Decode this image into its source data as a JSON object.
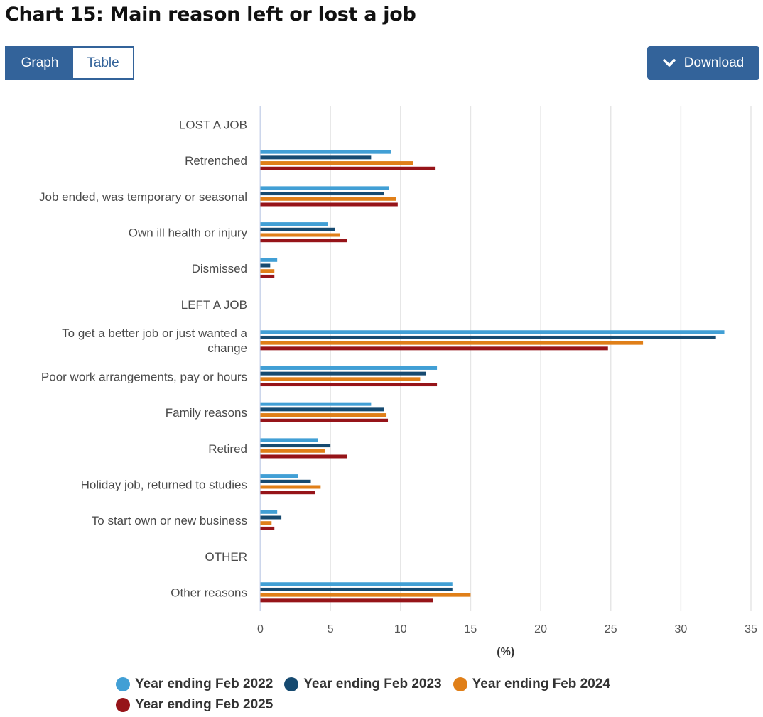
{
  "page": {
    "title": "Chart 15: Main reason left or lost a job",
    "view_toggle": {
      "graph_label": "Graph",
      "table_label": "Table",
      "active": "Graph"
    },
    "download_label": "Download",
    "download_icon": "chevron-down-icon"
  },
  "colors": {
    "accent": "#33639a",
    "series": [
      "#419fd5",
      "#164a70",
      "#e07f18",
      "#961419"
    ]
  },
  "chart_data": {
    "type": "bar",
    "orientation": "horizontal",
    "title": "Chart 15: Main reason left or lost a job",
    "xlabel": "(%)",
    "ylabel": "",
    "xlim": [
      0,
      35
    ],
    "xticks": [
      0,
      5,
      10,
      15,
      20,
      25,
      30,
      35
    ],
    "grid": true,
    "legend_position": "bottom",
    "categories": [
      "LOST A JOB",
      "Retrenched",
      "Job ended, was temporary or seasonal",
      "Own ill health or injury",
      "Dismissed",
      "LEFT A JOB",
      "To get a better job or just wanted a change",
      "Poor work arrangements, pay or hours",
      "Family reasons",
      "Retired",
      "Holiday job, returned to studies",
      "To start own or new business",
      "OTHER",
      "Other reasons"
    ],
    "category_lines": [
      [
        "LOST A JOB"
      ],
      [
        "Retrenched"
      ],
      [
        "Job ended, was temporary or seasonal"
      ],
      [
        "Own ill health or injury"
      ],
      [
        "Dismissed"
      ],
      [
        "LEFT A JOB"
      ],
      [
        "To get a better job or just wanted a",
        "change"
      ],
      [
        "Poor work arrangements, pay or hours"
      ],
      [
        "Family reasons"
      ],
      [
        "Retired"
      ],
      [
        "Holiday job, returned to studies"
      ],
      [
        "To start own or new business"
      ],
      [
        "OTHER"
      ],
      [
        "Other reasons"
      ]
    ],
    "series": [
      {
        "name": "Year ending Feb 2022",
        "values": [
          null,
          9.3,
          9.2,
          4.8,
          1.2,
          null,
          33.1,
          12.6,
          7.9,
          4.1,
          2.7,
          1.2,
          null,
          13.7
        ]
      },
      {
        "name": "Year ending Feb 2023",
        "values": [
          null,
          7.9,
          8.8,
          5.3,
          0.7,
          null,
          32.5,
          11.8,
          8.8,
          5.0,
          3.6,
          1.5,
          null,
          13.7
        ]
      },
      {
        "name": "Year ending Feb 2024",
        "values": [
          null,
          10.9,
          9.7,
          5.7,
          1.0,
          null,
          27.3,
          11.4,
          9.0,
          4.6,
          4.3,
          0.8,
          null,
          15.0
        ]
      },
      {
        "name": "Year ending Feb 2025",
        "values": [
          null,
          12.5,
          9.8,
          6.2,
          1.0,
          null,
          24.8,
          12.6,
          9.1,
          6.2,
          3.9,
          1.0,
          null,
          12.3
        ]
      }
    ]
  }
}
